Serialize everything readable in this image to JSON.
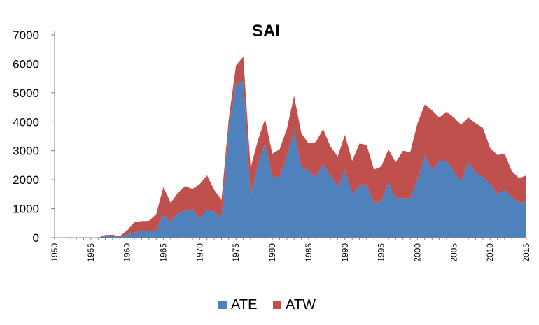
{
  "chart_data": {
    "type": "area",
    "stacked": true,
    "title": "SAI",
    "xlabel": "",
    "ylabel": "",
    "xlim": [
      1950,
      2015
    ],
    "ylim": [
      0,
      7000
    ],
    "y_ticks": [
      0,
      1000,
      2000,
      3000,
      4000,
      5000,
      6000,
      7000
    ],
    "x_tick_labels": [
      "1950",
      "1955",
      "1960",
      "1965",
      "1970",
      "1975",
      "1980",
      "1985",
      "1990",
      "1995",
      "2000",
      "2005",
      "2010",
      "2015"
    ],
    "grid": false,
    "legend_position": "bottom",
    "x": [
      1950,
      1951,
      1952,
      1953,
      1954,
      1955,
      1956,
      1957,
      1958,
      1959,
      1960,
      1961,
      1962,
      1963,
      1964,
      1965,
      1966,
      1967,
      1968,
      1969,
      1970,
      1971,
      1972,
      1973,
      1974,
      1975,
      1976,
      1977,
      1978,
      1979,
      1980,
      1981,
      1982,
      1983,
      1984,
      1985,
      1986,
      1987,
      1988,
      1989,
      1990,
      1991,
      1992,
      1993,
      1994,
      1995,
      1996,
      1997,
      1998,
      1999,
      2000,
      2001,
      2002,
      2003,
      2004,
      2005,
      2006,
      2007,
      2008,
      2009,
      2010,
      2011,
      2012,
      2013,
      2014,
      2015
    ],
    "series": [
      {
        "name": "ATE",
        "color": "#4f81bd",
        "values": [
          0,
          0,
          0,
          0,
          0,
          0,
          0,
          50,
          60,
          20,
          100,
          180,
          220,
          230,
          260,
          800,
          550,
          850,
          930,
          980,
          650,
          950,
          900,
          700,
          3800,
          5300,
          5400,
          1450,
          2500,
          3250,
          2100,
          2100,
          2800,
          3700,
          2450,
          2300,
          2100,
          2550,
          2150,
          1750,
          2350,
          1500,
          1800,
          1800,
          1200,
          1250,
          1900,
          1350,
          1350,
          1350,
          2000,
          2850,
          2350,
          2650,
          2650,
          2300,
          1950,
          2600,
          2250,
          2100,
          1850,
          1500,
          1650,
          1400,
          1200,
          1250
        ]
      },
      {
        "name": "ATW",
        "color": "#c0504d",
        "values": [
          0,
          0,
          0,
          0,
          0,
          0,
          0,
          40,
          40,
          30,
          150,
          350,
          350,
          350,
          550,
          950,
          650,
          700,
          850,
          700,
          1200,
          1200,
          750,
          600,
          300,
          650,
          850,
          950,
          850,
          850,
          800,
          950,
          950,
          1200,
          1150,
          950,
          1200,
          1200,
          1000,
          1050,
          1200,
          1150,
          1450,
          1400,
          1150,
          1200,
          1150,
          1250,
          1650,
          1600,
          1950,
          1750,
          2050,
          1500,
          1700,
          1850,
          1950,
          1550,
          1700,
          1700,
          1250,
          1350,
          1250,
          900,
          850,
          900
        ]
      }
    ]
  }
}
